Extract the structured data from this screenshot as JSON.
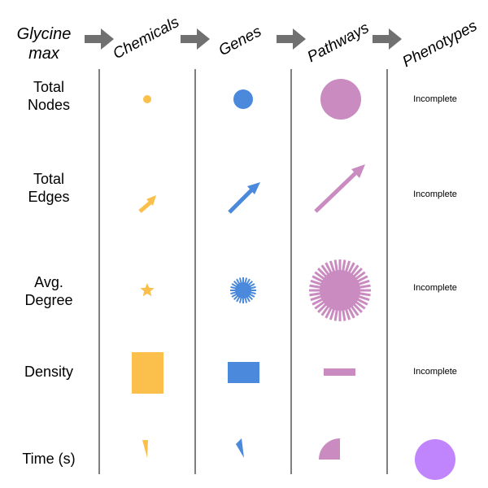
{
  "organism": {
    "line1": "Glycine",
    "line2": "max"
  },
  "columns": [
    {
      "label": "Chemicals",
      "color": "#FBBF4C"
    },
    {
      "label": "Genes",
      "color": "#4A89DC"
    },
    {
      "label": "Pathways",
      "color": "#C98BC0"
    },
    {
      "label": "Phenotypes",
      "color": "#C084FC"
    }
  ],
  "rows": [
    {
      "label_lines": [
        "Total",
        "Nodes"
      ]
    },
    {
      "label_lines": [
        "Total",
        "Edges"
      ]
    },
    {
      "label_lines": [
        "Avg.",
        "Degree"
      ]
    },
    {
      "label_lines": [
        "Density"
      ]
    },
    {
      "label_lines": [
        "Time (s)"
      ]
    }
  ],
  "status_text": "Incomplete",
  "colors": {
    "arrow": "#707070",
    "divider": "#555555"
  }
}
